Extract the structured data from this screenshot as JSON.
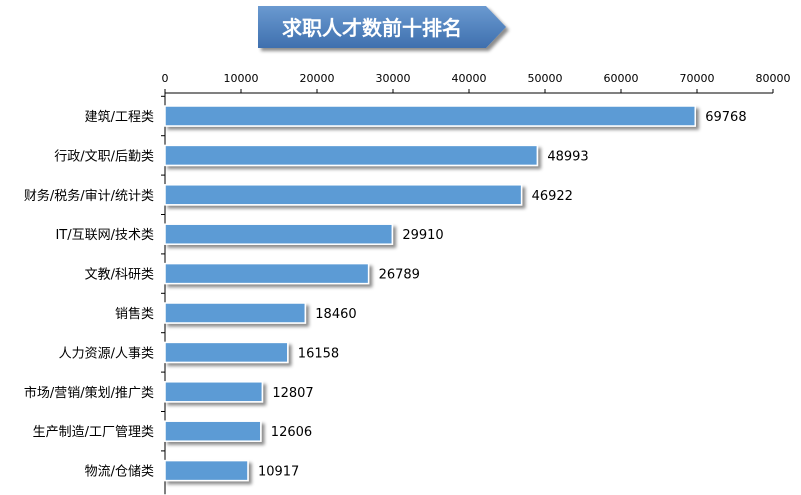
{
  "chart_data": {
    "type": "bar",
    "orientation": "horizontal",
    "title": "求职人才数前十排名",
    "categories": [
      "建筑/工程类",
      "行政/文职/后勤类",
      "财务/税务/审计/统计类",
      "IT/互联网/技术类",
      "文教/科研类",
      "销售类",
      "人力资源/人事类",
      "市场/营销/策划/推广类",
      "生产制造/工厂管理类",
      "物流/仓储类"
    ],
    "values": [
      69768,
      48993,
      46922,
      29910,
      26789,
      18460,
      16158,
      12807,
      12606,
      10917
    ],
    "xlim": [
      0,
      80000
    ],
    "xticks": [
      0,
      10000,
      20000,
      30000,
      40000,
      50000,
      60000,
      70000,
      80000
    ],
    "xaxis_position": "top",
    "grid": false,
    "legend": "none",
    "data_labels": true
  },
  "colors": {
    "bar": "#5b9bd5",
    "bar_edge": "#ffffff",
    "title_banner": "#4f81bd",
    "axis": "#000000"
  }
}
